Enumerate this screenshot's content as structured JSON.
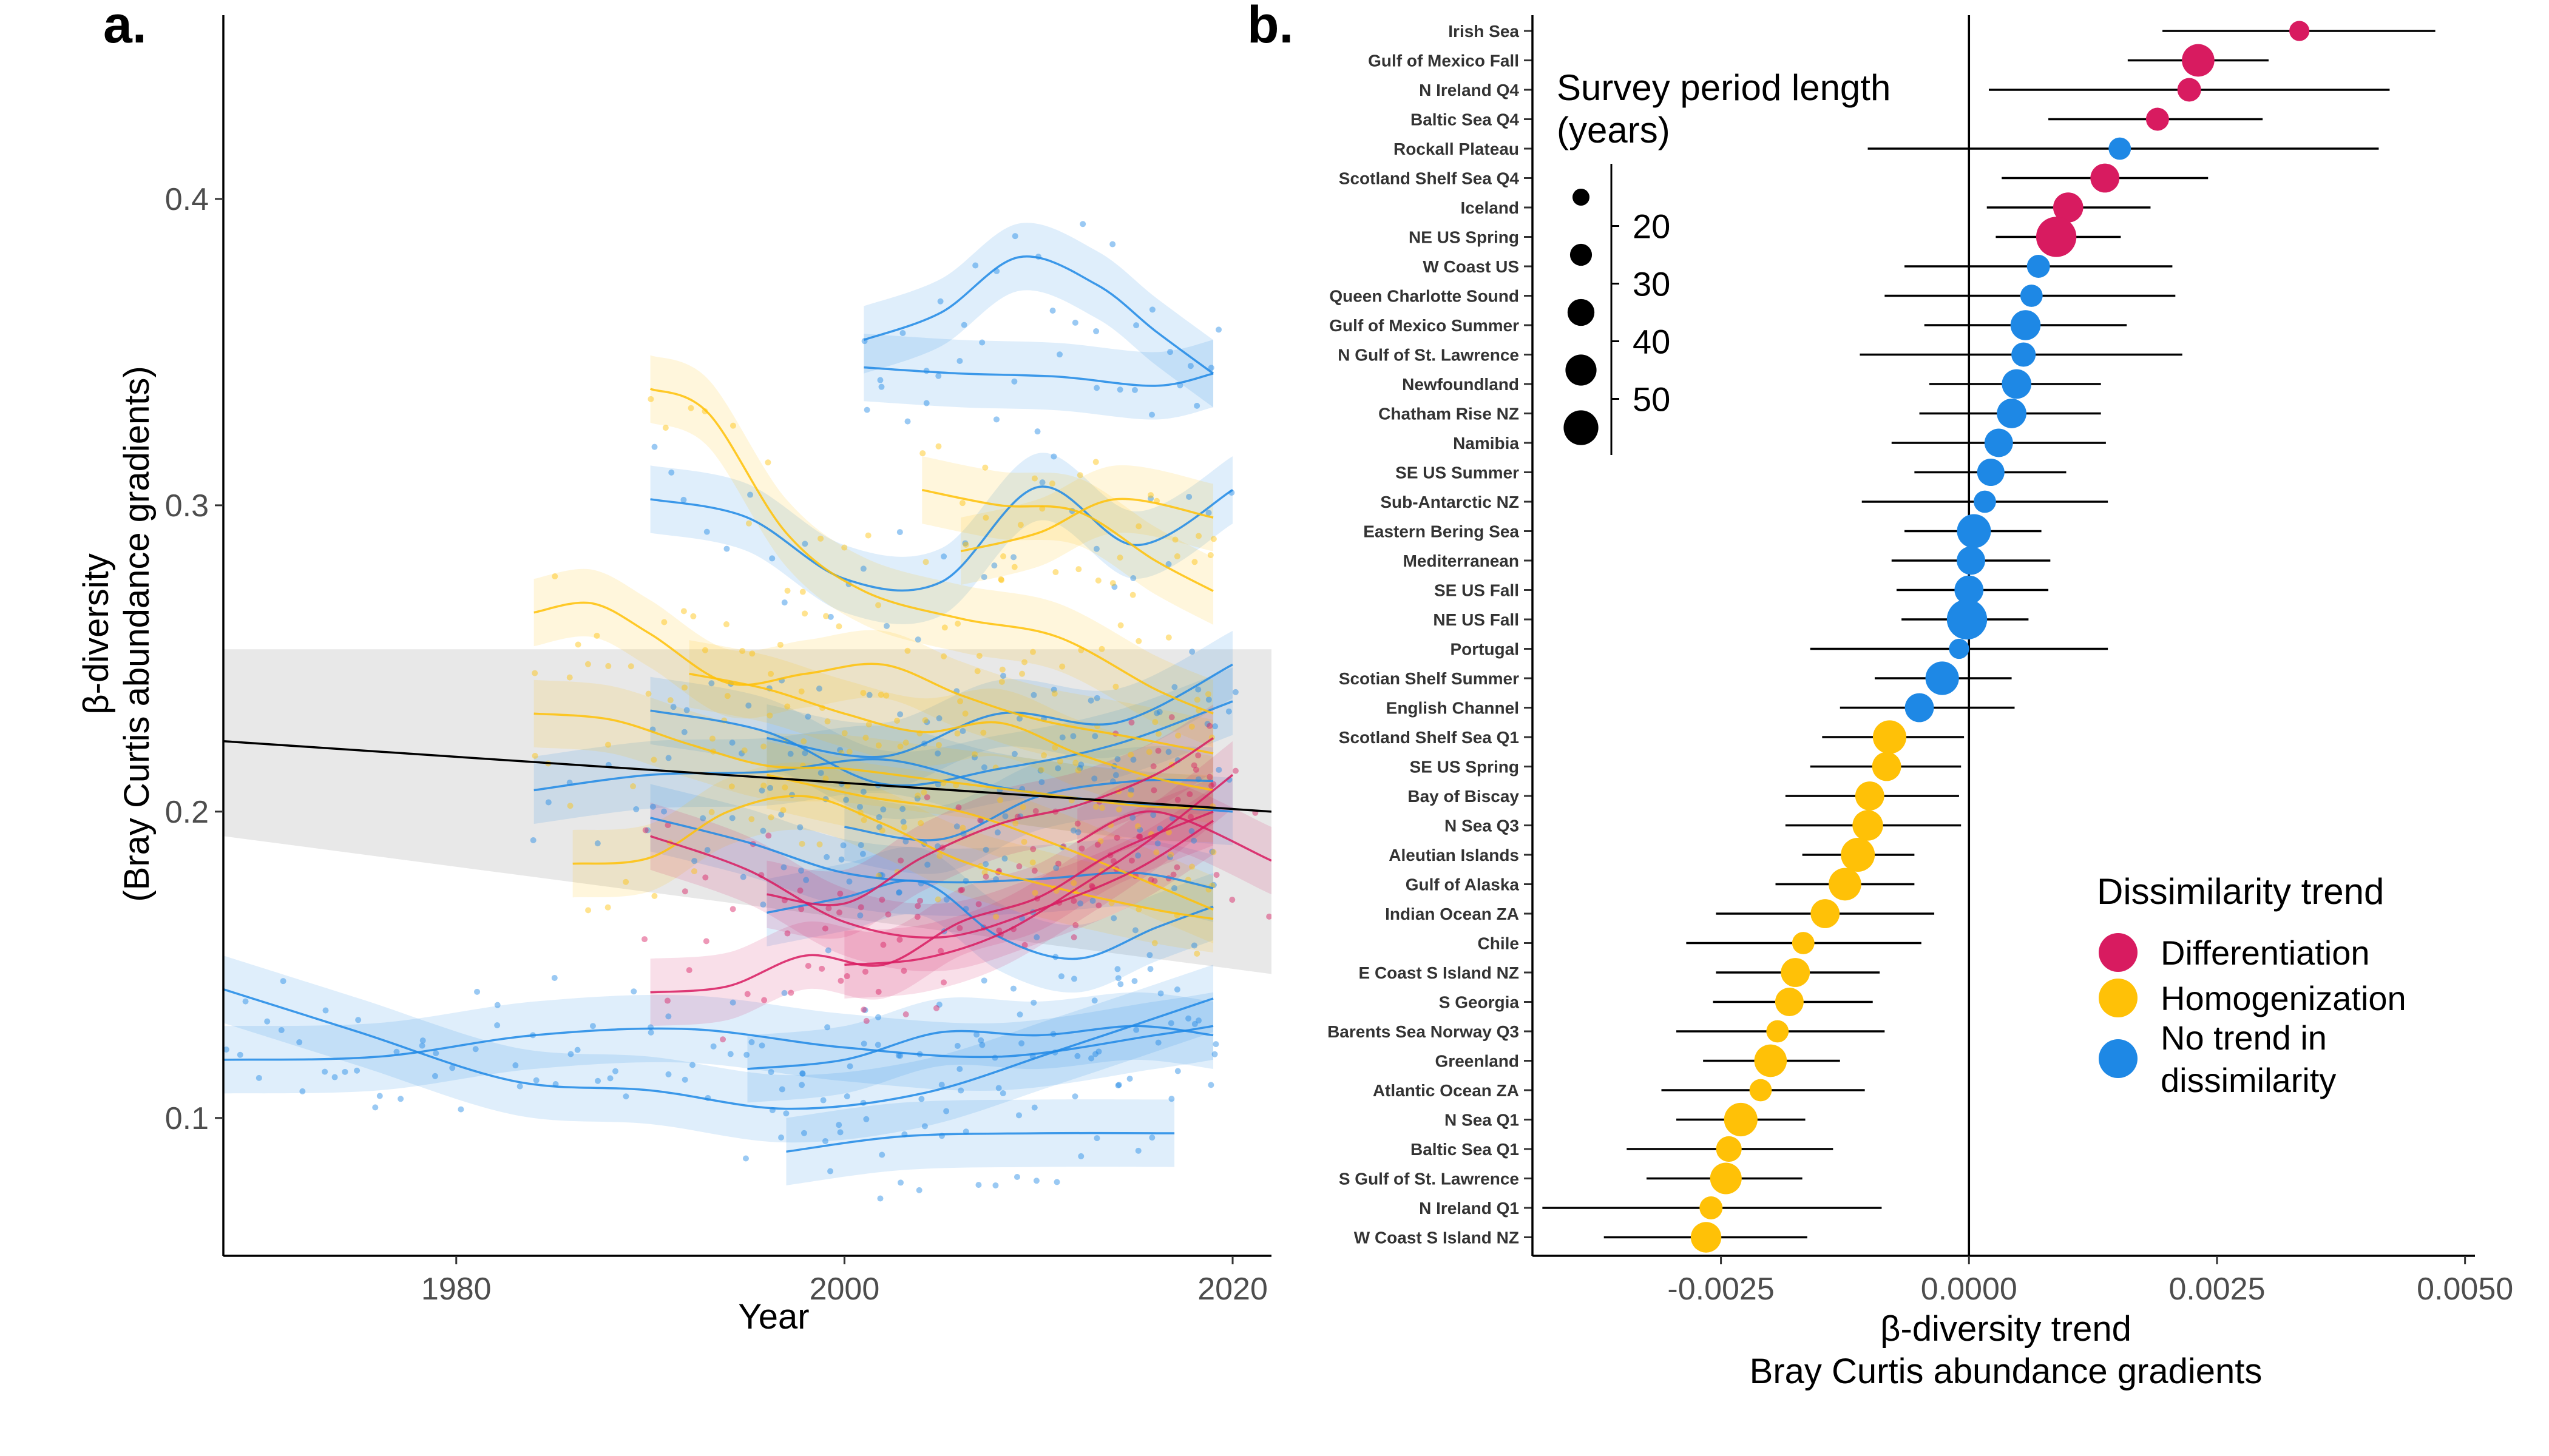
{
  "colors": {
    "differentiation": "#D81B60",
    "homogenization": "#FFC107",
    "no_trend": "#1E88E5",
    "ribbon_gray": "#D9D9D9",
    "black": "#000000",
    "axis_text": "#4D4D4D"
  },
  "chart_data": [
    {
      "type": "line",
      "panel_label": "a.",
      "xlabel": "Year",
      "ylabel_line1": "β-diversity",
      "ylabel_line2": "(Bray Curtis abundance gradients)",
      "xlim": [
        1968,
        2022
      ],
      "ylim": [
        0.055,
        0.46
      ],
      "xticks": [
        1980,
        2000,
        2020
      ],
      "yticks": [
        0.1,
        0.2,
        0.3,
        0.4
      ],
      "xtick_labels": [
        "1980",
        "2000",
        "2020"
      ],
      "ytick_labels": [
        "0.1",
        "0.2",
        "0.3",
        "0.4"
      ],
      "overall_trend": {
        "x": [
          1968,
          2022
        ],
        "y": [
          0.223,
          0.2
        ],
        "ci_low": [
          0.192,
          0.147
        ],
        "ci_high": [
          0.253,
          0.253
        ]
      },
      "series": [
        {
          "trend": "no_trend",
          "x": [
            2001,
            2005,
            2009,
            2013,
            2016,
            2019
          ],
          "y": [
            0.354,
            0.363,
            0.381,
            0.372,
            0.357,
            0.343
          ]
        },
        {
          "trend": "no_trend",
          "x": [
            2001,
            2006,
            2011,
            2016,
            2019
          ],
          "y": [
            0.345,
            0.343,
            0.342,
            0.339,
            0.343
          ]
        },
        {
          "trend": "no_trend",
          "x": [
            1990,
            1995,
            2000,
            2005,
            2010,
            2015,
            2020
          ],
          "y": [
            0.302,
            0.296,
            0.276,
            0.275,
            0.306,
            0.287,
            0.305
          ]
        },
        {
          "trend": "no_trend",
          "x": [
            1968,
            1975,
            1983,
            1990,
            1997,
            2004,
            2011,
            2019
          ],
          "y": [
            0.142,
            0.128,
            0.112,
            0.109,
            0.103,
            0.108,
            0.122,
            0.139
          ]
        },
        {
          "trend": "no_trend",
          "x": [
            1968,
            1976,
            1984,
            1992,
            2000,
            2008,
            2016,
            2019
          ],
          "y": [
            0.119,
            0.12,
            0.127,
            0.129,
            0.123,
            0.12,
            0.127,
            0.13
          ]
        },
        {
          "trend": "no_trend",
          "x": [
            1997,
            2003,
            2010,
            2017
          ],
          "y": [
            0.089,
            0.094,
            0.095,
            0.095
          ]
        },
        {
          "trend": "no_trend",
          "x": [
            1995,
            2000,
            2005,
            2010,
            2015,
            2019
          ],
          "y": [
            0.116,
            0.119,
            0.128,
            0.127,
            0.13,
            0.127
          ]
        },
        {
          "trend": "no_trend",
          "x": [
            1984,
            1990,
            1996,
            2002,
            2008,
            2014,
            2020
          ],
          "y": [
            0.207,
            0.212,
            0.213,
            0.217,
            0.208,
            0.203,
            0.2
          ]
        },
        {
          "trend": "no_trend",
          "x": [
            1990,
            1996,
            2002,
            2008,
            2014,
            2020
          ],
          "y": [
            0.233,
            0.226,
            0.209,
            0.214,
            0.222,
            0.236
          ]
        },
        {
          "trend": "no_trend",
          "x": [
            1996,
            2002,
            2008,
            2014,
            2020
          ],
          "y": [
            0.224,
            0.218,
            0.232,
            0.229,
            0.248
          ]
        },
        {
          "trend": "no_trend",
          "x": [
            1990,
            1995,
            2000,
            2005,
            2010,
            2015,
            2019
          ],
          "y": [
            0.198,
            0.19,
            0.18,
            0.177,
            0.178,
            0.18,
            0.175
          ]
        },
        {
          "trend": "no_trend",
          "x": [
            1996,
            2000,
            2004,
            2008,
            2012,
            2016,
            2019
          ],
          "y": [
            0.167,
            0.172,
            0.177,
            0.159,
            0.152,
            0.162,
            0.169
          ]
        },
        {
          "trend": "no_trend",
          "x": [
            2000,
            2005,
            2010,
            2015,
            2019
          ],
          "y": [
            0.195,
            0.191,
            0.205,
            0.21,
            0.21
          ]
        },
        {
          "trend": "homogenization",
          "x": [
            1990,
            1993,
            1997,
            2001,
            2006,
            2011,
            2016,
            2019
          ],
          "y": [
            0.338,
            0.33,
            0.291,
            0.272,
            0.263,
            0.257,
            0.24,
            0.232
          ]
        },
        {
          "trend": "homogenization",
          "x": [
            1984,
            1987,
            1990,
            1994,
            1998,
            2002,
            2006,
            2010,
            2015,
            2019
          ],
          "y": [
            0.265,
            0.268,
            0.258,
            0.242,
            0.245,
            0.248,
            0.238,
            0.23,
            0.224,
            0.219
          ]
        },
        {
          "trend": "homogenization",
          "x": [
            1984,
            1988,
            1992,
            1996,
            2000,
            2005,
            2010,
            2015,
            2019
          ],
          "y": [
            0.232,
            0.23,
            0.222,
            0.215,
            0.214,
            0.21,
            0.206,
            0.202,
            0.201
          ]
        },
        {
          "trend": "homogenization",
          "x": [
            1986,
            1990,
            1994,
            1998,
            2002,
            2006,
            2011,
            2016,
            2019
          ],
          "y": [
            0.183,
            0.185,
            0.2,
            0.205,
            0.196,
            0.184,
            0.175,
            0.168,
            0.165
          ]
        },
        {
          "trend": "homogenization",
          "x": [
            2004,
            2008,
            2012,
            2016,
            2019
          ],
          "y": [
            0.305,
            0.3,
            0.298,
            0.282,
            0.272
          ]
        },
        {
          "trend": "homogenization",
          "x": [
            2006,
            2010,
            2014,
            2019
          ],
          "y": [
            0.285,
            0.291,
            0.302,
            0.296
          ]
        },
        {
          "trend": "homogenization",
          "x": [
            1996,
            2001,
            2006,
            2011,
            2016,
            2019
          ],
          "y": [
            0.212,
            0.205,
            0.2,
            0.189,
            0.176,
            0.168
          ]
        },
        {
          "trend": "homogenization",
          "x": [
            1992,
            1996,
            2000,
            2004,
            2008,
            2012,
            2016,
            2019
          ],
          "y": [
            0.245,
            0.24,
            0.232,
            0.226,
            0.229,
            0.219,
            0.211,
            0.207
          ]
        },
        {
          "trend": "differentiation",
          "x": [
            1990,
            1994,
            1998,
            2002,
            2006,
            2010,
            2014,
            2019
          ],
          "y": [
            0.141,
            0.143,
            0.153,
            0.15,
            0.164,
            0.172,
            0.187,
            0.2
          ]
        },
        {
          "trend": "differentiation",
          "x": [
            1996,
            2000,
            2004,
            2008,
            2012,
            2016,
            2019
          ],
          "y": [
            0.173,
            0.17,
            0.185,
            0.196,
            0.202,
            0.212,
            0.224
          ]
        },
        {
          "trend": "differentiation",
          "x": [
            1990,
            1995,
            2000,
            2005,
            2010,
            2015,
            2019
          ],
          "y": [
            0.192,
            0.181,
            0.164,
            0.159,
            0.168,
            0.181,
            0.197
          ]
        },
        {
          "trend": "differentiation",
          "x": [
            2000,
            2004,
            2008,
            2012,
            2016,
            2020
          ],
          "y": [
            0.15,
            0.152,
            0.16,
            0.175,
            0.192,
            0.212
          ]
        },
        {
          "trend": "differentiation",
          "x": [
            2012,
            2016,
            2022
          ],
          "y": [
            0.19,
            0.2,
            0.184
          ]
        }
      ]
    },
    {
      "type": "scatter",
      "panel_label": "b.",
      "xlabel_line1": "β-diversity trend",
      "xlabel_line2": "Bray Curtis abundance gradients",
      "xlim": [
        -0.0044,
        0.0051
      ],
      "xticks": [
        -0.0025,
        0.0,
        0.0025,
        0.005
      ],
      "xtick_labels": [
        "-0.0025",
        "0.0000",
        "0.0025",
        "0.0050"
      ],
      "size_legend": {
        "title_line1": "Survey period length",
        "title_line2": "(years)",
        "entries": [
          {
            "value": 20,
            "label": "20"
          },
          {
            "value": 30,
            "label": "30"
          },
          {
            "value": 40,
            "label": "40"
          },
          {
            "value": 50,
            "label": "50"
          }
        ]
      },
      "color_legend": {
        "title": "Dissimilarity trend",
        "entries": [
          {
            "trend": "differentiation",
            "label": "Differentiation"
          },
          {
            "trend": "homogenization",
            "label": "Homogenization"
          },
          {
            "trend": "no_trend",
            "label_line1": "No trend in",
            "label_line2": "dissimilarity"
          }
        ]
      },
      "points": [
        {
          "label": "Irish Sea",
          "estimate": 0.00333,
          "lo": 0.00195,
          "hi": 0.0047,
          "years": 13,
          "trend": "differentiation"
        },
        {
          "label": "Gulf of Mexico Fall",
          "estimate": 0.00231,
          "lo": 0.0016,
          "hi": 0.00302,
          "years": 34,
          "trend": "differentiation"
        },
        {
          "label": "N Ireland Q4",
          "estimate": 0.00222,
          "lo": 0.0002,
          "hi": 0.00424,
          "years": 18,
          "trend": "differentiation"
        },
        {
          "label": "Baltic Sea Q4",
          "estimate": 0.0019,
          "lo": 0.0008,
          "hi": 0.00296,
          "years": 17,
          "trend": "differentiation"
        },
        {
          "label": "Rockall Plateau",
          "estimate": 0.00152,
          "lo": -0.00102,
          "hi": 0.00413,
          "years": 16,
          "trend": "no_trend"
        },
        {
          "label": "Scotland Shelf Sea Q4",
          "estimate": 0.00137,
          "lo": 0.00033,
          "hi": 0.00241,
          "years": 27,
          "trend": "differentiation"
        },
        {
          "label": "Iceland",
          "estimate": 0.001,
          "lo": 0.00018,
          "hi": 0.00183,
          "years": 29,
          "trend": "differentiation"
        },
        {
          "label": "NE US Spring",
          "estimate": 0.00088,
          "lo": 0.00027,
          "hi": 0.00153,
          "years": 52,
          "trend": "differentiation"
        },
        {
          "label": "W Coast US",
          "estimate": 0.0007,
          "lo": -0.00065,
          "hi": 0.00205,
          "years": 17,
          "trend": "no_trend"
        },
        {
          "label": "Queen Charlotte Sound",
          "estimate": 0.00063,
          "lo": -0.00085,
          "hi": 0.00208,
          "years": 16,
          "trend": "no_trend"
        },
        {
          "label": "Gulf of Mexico Summer",
          "estimate": 0.00057,
          "lo": -0.00045,
          "hi": 0.00159,
          "years": 29,
          "trend": "no_trend"
        },
        {
          "label": "N Gulf of St. Lawrence",
          "estimate": 0.00055,
          "lo": -0.0011,
          "hi": 0.00215,
          "years": 19,
          "trend": "no_trend"
        },
        {
          "label": "Newfoundland",
          "estimate": 0.00048,
          "lo": -0.0004,
          "hi": 0.00133,
          "years": 28,
          "trend": "no_trend"
        },
        {
          "label": "Chatham Rise NZ",
          "estimate": 0.00043,
          "lo": -0.0005,
          "hi": 0.00133,
          "years": 28,
          "trend": "no_trend"
        },
        {
          "label": "Namibia",
          "estimate": 0.0003,
          "lo": -0.00078,
          "hi": 0.00138,
          "years": 26,
          "trend": "no_trend"
        },
        {
          "label": "SE US Summer",
          "estimate": 0.00022,
          "lo": -0.00055,
          "hi": 0.00098,
          "years": 24,
          "trend": "no_trend"
        },
        {
          "label": "Sub-Antarctic NZ",
          "estimate": 0.00016,
          "lo": -0.00108,
          "hi": 0.0014,
          "years": 16,
          "trend": "no_trend"
        },
        {
          "label": "Eastern Bering Sea",
          "estimate": 5e-05,
          "lo": -0.00065,
          "hi": 0.00073,
          "years": 37,
          "trend": "no_trend"
        },
        {
          "label": "Mediterranean",
          "estimate": 2e-05,
          "lo": -0.00078,
          "hi": 0.00082,
          "years": 26,
          "trend": "no_trend"
        },
        {
          "label": "SE US Fall",
          "estimate": 0.0,
          "lo": -0.00073,
          "hi": 0.0008,
          "years": 27,
          "trend": "no_trend"
        },
        {
          "label": "NE US Fall",
          "estimate": -2e-05,
          "lo": -0.00068,
          "hi": 0.0006,
          "years": 52,
          "trend": "no_trend"
        },
        {
          "label": "Portugal",
          "estimate": -0.0001,
          "lo": -0.0016,
          "hi": 0.0014,
          "years": 13,
          "trend": "no_trend"
        },
        {
          "label": "Scotian Shelf Summer",
          "estimate": -0.00027,
          "lo": -0.00095,
          "hi": 0.00043,
          "years": 36,
          "trend": "no_trend"
        },
        {
          "label": "English Channel",
          "estimate": -0.0005,
          "lo": -0.0013,
          "hi": 0.00046,
          "years": 27,
          "trend": "no_trend"
        },
        {
          "label": "Scotland Shelf Sea Q1",
          "estimate": -0.0008,
          "lo": -0.00148,
          "hi": -5e-05,
          "years": 36,
          "trend": "homogenization"
        },
        {
          "label": "SE US Spring",
          "estimate": -0.00083,
          "lo": -0.0016,
          "hi": -8e-05,
          "years": 27,
          "trend": "homogenization"
        },
        {
          "label": "Bay of Biscay",
          "estimate": -0.001,
          "lo": -0.00185,
          "hi": -0.0001,
          "years": 27,
          "trend": "homogenization"
        },
        {
          "label": "N Sea Q3",
          "estimate": -0.00102,
          "lo": -0.00185,
          "hi": -8e-05,
          "years": 30,
          "trend": "homogenization"
        },
        {
          "label": "Aleutian Islands",
          "estimate": -0.00112,
          "lo": -0.00168,
          "hi": -0.00055,
          "years": 37,
          "trend": "homogenization"
        },
        {
          "label": "Gulf of Alaska",
          "estimate": -0.00125,
          "lo": -0.00195,
          "hi": -0.00055,
          "years": 34,
          "trend": "homogenization"
        },
        {
          "label": "Indian Ocean ZA",
          "estimate": -0.00145,
          "lo": -0.00255,
          "hi": -0.00035,
          "years": 27,
          "trend": "homogenization"
        },
        {
          "label": "Chile",
          "estimate": -0.00167,
          "lo": -0.00285,
          "hi": -0.00048,
          "years": 16,
          "trend": "homogenization"
        },
        {
          "label": "E Coast S Island NZ",
          "estimate": -0.00175,
          "lo": -0.00255,
          "hi": -0.0009,
          "years": 27,
          "trend": "homogenization"
        },
        {
          "label": "S Georgia",
          "estimate": -0.00181,
          "lo": -0.00258,
          "hi": -0.00097,
          "years": 26,
          "trend": "homogenization"
        },
        {
          "label": "Barents Sea Norway Q3",
          "estimate": -0.00193,
          "lo": -0.00295,
          "hi": -0.00085,
          "years": 16,
          "trend": "homogenization"
        },
        {
          "label": "Greenland",
          "estimate": -0.002,
          "lo": -0.00268,
          "hi": -0.0013,
          "years": 34,
          "trend": "homogenization"
        },
        {
          "label": "Atlantic Ocean ZA",
          "estimate": -0.0021,
          "lo": -0.0031,
          "hi": -0.00105,
          "years": 16,
          "trend": "homogenization"
        },
        {
          "label": "N Sea Q1",
          "estimate": -0.0023,
          "lo": -0.00295,
          "hi": -0.00165,
          "years": 36,
          "trend": "homogenization"
        },
        {
          "label": "Baltic Sea Q1",
          "estimate": -0.00242,
          "lo": -0.00345,
          "hi": -0.00137,
          "years": 21,
          "trend": "homogenization"
        },
        {
          "label": "S Gulf of St. Lawrence",
          "estimate": -0.00245,
          "lo": -0.00325,
          "hi": -0.00168,
          "years": 32,
          "trend": "homogenization"
        },
        {
          "label": "N Ireland Q1",
          "estimate": -0.0026,
          "lo": -0.0043,
          "hi": -0.00088,
          "years": 17,
          "trend": "homogenization"
        },
        {
          "label": "W Coast S Island NZ",
          "estimate": -0.00265,
          "lo": -0.00368,
          "hi": -0.00163,
          "years": 30,
          "trend": "homogenization"
        }
      ]
    }
  ]
}
